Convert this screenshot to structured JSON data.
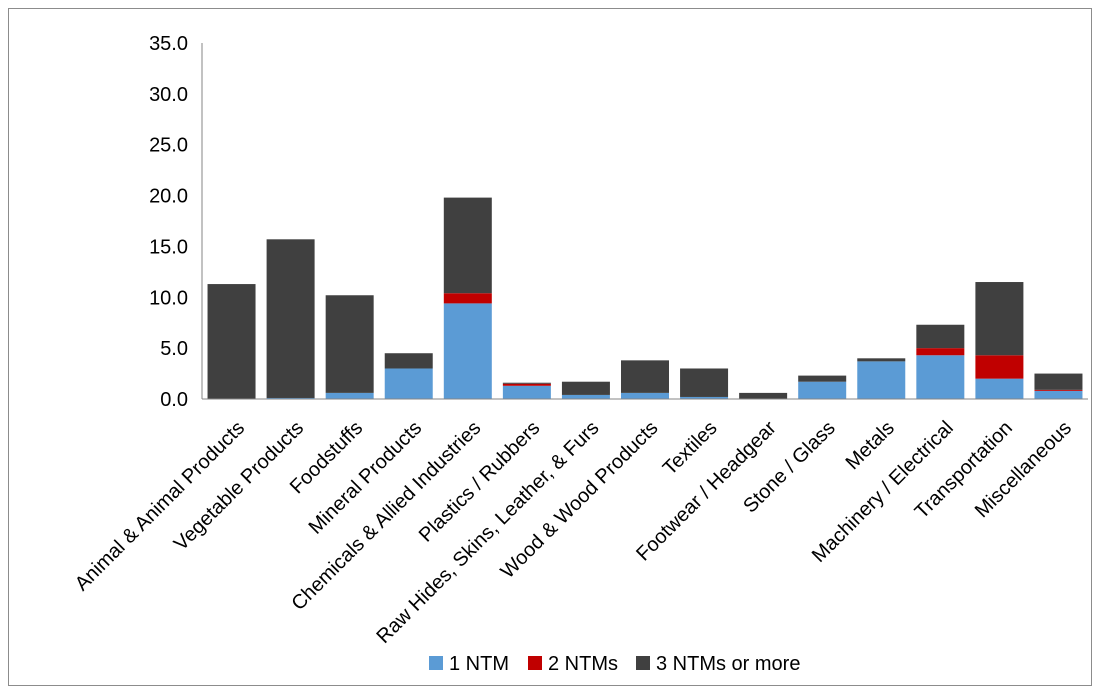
{
  "chart_data": {
    "type": "bar",
    "stacked": true,
    "title": "",
    "xlabel": "",
    "ylabel": "",
    "ylim": [
      0,
      35
    ],
    "yticks": [
      "0.0",
      "5.0",
      "10.0",
      "15.0",
      "20.0",
      "25.0",
      "30.0",
      "35.0"
    ],
    "grid": false,
    "legend_position": "bottom",
    "categories": [
      "Animal & Animal Products",
      "Vegetable Products",
      "Foodstuffs",
      "Mineral Products",
      "Chemicals & Allied Industries",
      "Plastics / Rubbers",
      "Raw Hides, Skins, Leather, & Furs",
      "Wood & Wood Products",
      "Textiles",
      "Footwear / Headgear",
      "Stone / Glass",
      "Metals",
      "Machinery / Electrical",
      "Transportation",
      "Miscellaneous"
    ],
    "series": [
      {
        "name": "1 NTM",
        "color": "#5b9bd5",
        "values": [
          0.0,
          0.1,
          0.6,
          3.0,
          9.4,
          1.3,
          0.4,
          0.6,
          0.2,
          0.0,
          1.7,
          3.7,
          4.3,
          2.0,
          0.8
        ]
      },
      {
        "name": "2 NTMs",
        "color": "#c00000",
        "values": [
          0.0,
          0.0,
          0.0,
          0.0,
          1.0,
          0.2,
          0.0,
          0.0,
          0.0,
          0.0,
          0.0,
          0.0,
          0.7,
          2.3,
          0.1
        ]
      },
      {
        "name": "3 NTMs or more",
        "color": "#404040",
        "values": [
          11.3,
          15.6,
          9.6,
          1.5,
          9.4,
          0.1,
          1.3,
          3.2,
          2.8,
          0.6,
          0.6,
          0.3,
          2.3,
          7.2,
          1.6
        ]
      }
    ]
  }
}
